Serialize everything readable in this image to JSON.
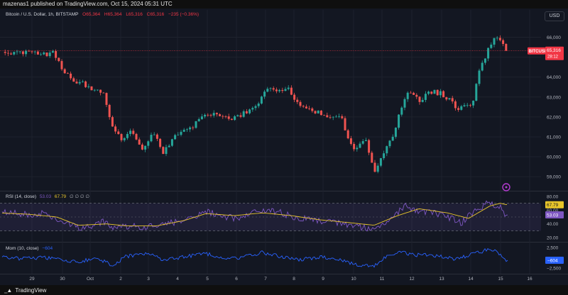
{
  "header": {
    "published_by": "mazenas1 published on TradingView.com, Oct 15, 2024 05:31 UTC"
  },
  "legend": {
    "symbol": "Bitcoin / U.S. Dollar, 1h, BITSTAMP",
    "open": "O65,364",
    "high": "H65,364",
    "low": "L65,316",
    "close": "C65,316",
    "change": "−235 (−0.36%)"
  },
  "currency": "USD",
  "price_tag": {
    "symbol": "BITCUSD",
    "price": "65,316",
    "countdown": "28:12"
  },
  "rsi": {
    "label": "RSI (14, close)",
    "value": "53.03",
    "ma": "67.79",
    "zeros": "∅ ∅ ∅ ∅",
    "tag_rsi": "53.03",
    "tag_ma": "67.79"
  },
  "mom": {
    "label": "Mom (10, close)",
    "value": "−604",
    "tag": "−604"
  },
  "footer": {
    "brand": "TradingView"
  },
  "colors": {
    "up": "#26a69a",
    "down": "#ef5350",
    "grid": "#1e222d",
    "rsi": "#7e57c2",
    "rsi_ma": "#e9c62a",
    "mom": "#2962ff",
    "price_line": "#f23645"
  },
  "chart_data": [
    {
      "type": "candlestick",
      "title": "Bitcoin / U.S. Dollar, 1h, BITSTAMP",
      "x_tick_labels": [
        "29",
        "30",
        "Oct",
        "2",
        "3",
        "4",
        "5",
        "6",
        "7",
        "8",
        "9",
        "10",
        "11",
        "12",
        "13",
        "14",
        "15",
        "16"
      ],
      "y_tick_labels": [
        "59,000",
        "60,000",
        "61,000",
        "62,000",
        "63,000",
        "64,000",
        "65,000",
        "66,000"
      ],
      "ylim": [
        58400,
        66800
      ],
      "grid": true,
      "last_price": 65316,
      "close_path_approx": [
        [
          0,
          65300
        ],
        [
          12,
          65150
        ],
        [
          40,
          65200
        ],
        [
          60,
          65100
        ],
        [
          75,
          65250
        ],
        [
          90,
          64300
        ],
        [
          100,
          63900
        ],
        [
          115,
          63700
        ],
        [
          130,
          63400
        ],
        [
          145,
          63300
        ],
        [
          160,
          61300
        ],
        [
          170,
          60900
        ],
        [
          185,
          61300
        ],
        [
          200,
          60300
        ],
        [
          215,
          61300
        ],
        [
          230,
          60200
        ],
        [
          250,
          61200
        ],
        [
          270,
          61500
        ],
        [
          290,
          62200
        ],
        [
          310,
          62000
        ],
        [
          325,
          61900
        ],
        [
          345,
          62200
        ],
        [
          360,
          62600
        ],
        [
          380,
          63500
        ],
        [
          395,
          63200
        ],
        [
          405,
          63400
        ],
        [
          420,
          62700
        ],
        [
          440,
          62300
        ],
        [
          460,
          62100
        ],
        [
          480,
          62000
        ],
        [
          490,
          61000
        ],
        [
          500,
          60400
        ],
        [
          515,
          60900
        ],
        [
          527,
          59300
        ],
        [
          540,
          60200
        ],
        [
          555,
          61200
        ],
        [
          565,
          62500
        ],
        [
          575,
          63200
        ],
        [
          590,
          62800
        ],
        [
          610,
          63300
        ],
        [
          625,
          63100
        ],
        [
          645,
          62400
        ],
        [
          665,
          62600
        ],
        [
          675,
          64300
        ],
        [
          685,
          65200
        ],
        [
          695,
          65900
        ],
        [
          705,
          65800
        ],
        [
          712,
          65316
        ]
      ]
    },
    {
      "type": "line",
      "title": "RSI (14, close)",
      "y_tick_labels": [
        "80.00",
        "60.00",
        "40.00",
        "20.00"
      ],
      "ylim": [
        15,
        85
      ],
      "bands": [
        30,
        70
      ],
      "series": [
        {
          "name": "RSI",
          "points": [
            [
              0,
              58
            ],
            [
              30,
              54
            ],
            [
              60,
              55
            ],
            [
              80,
              48
            ],
            [
              95,
              40
            ],
            [
              110,
              34
            ],
            [
              130,
              37
            ],
            [
              150,
              44
            ],
            [
              160,
              32
            ],
            [
              175,
              38
            ],
            [
              200,
              34
            ],
            [
              230,
              38
            ],
            [
              260,
              46
            ],
            [
              290,
              58
            ],
            [
              320,
              50
            ],
            [
              340,
              48
            ],
            [
              370,
              62
            ],
            [
              395,
              56
            ],
            [
              420,
              48
            ],
            [
              450,
              45
            ],
            [
              480,
              42
            ],
            [
              500,
              36
            ],
            [
              527,
              33
            ],
            [
              550,
              46
            ],
            [
              570,
              68
            ],
            [
              590,
              58
            ],
            [
              610,
              56
            ],
            [
              630,
              50
            ],
            [
              650,
              42
            ],
            [
              670,
              60
            ],
            [
              690,
              72
            ],
            [
              705,
              64
            ],
            [
              712,
              53
            ]
          ]
        },
        {
          "name": "RSI MA",
          "points": [
            [
              0,
              56
            ],
            [
              40,
              54
            ],
            [
              80,
              50
            ],
            [
              110,
              38
            ],
            [
              150,
              40
            ],
            [
              180,
              37
            ],
            [
              220,
              37
            ],
            [
              260,
              45
            ],
            [
              290,
              55
            ],
            [
              330,
              52
            ],
            [
              370,
              56
            ],
            [
              410,
              52
            ],
            [
              450,
              46
            ],
            [
              490,
              42
            ],
            [
              527,
              38
            ],
            [
              560,
              52
            ],
            [
              590,
              62
            ],
            [
              630,
              56
            ],
            [
              660,
              48
            ],
            [
              690,
              66
            ],
            [
              705,
              70
            ],
            [
              712,
              68
            ]
          ]
        }
      ]
    },
    {
      "type": "line",
      "title": "Mom (10, close)",
      "y_tick_labels": [
        "2,500",
        "−2,500"
      ],
      "ylim": [
        -3500,
        3500
      ],
      "series": [
        {
          "name": "Mom",
          "points": [
            [
              0,
              300
            ],
            [
              30,
              -200
            ],
            [
              60,
              100
            ],
            [
              90,
              -700
            ],
            [
              110,
              -1000
            ],
            [
              130,
              -200
            ],
            [
              150,
              -900
            ],
            [
              160,
              -2200
            ],
            [
              175,
              200
            ],
            [
              190,
              700
            ],
            [
              210,
              1200
            ],
            [
              230,
              -600
            ],
            [
              260,
              300
            ],
            [
              290,
              1000
            ],
            [
              320,
              -400
            ],
            [
              350,
              500
            ],
            [
              370,
              1300
            ],
            [
              395,
              300
            ],
            [
              420,
              -500
            ],
            [
              450,
              200
            ],
            [
              480,
              -600
            ],
            [
              500,
              -1700
            ],
            [
              527,
              -1900
            ],
            [
              545,
              300
            ],
            [
              565,
              1400
            ],
            [
              580,
              700
            ],
            [
              610,
              600
            ],
            [
              640,
              -300
            ],
            [
              670,
              1000
            ],
            [
              685,
              1900
            ],
            [
              700,
              1600
            ],
            [
              712,
              -604
            ]
          ]
        }
      ]
    }
  ]
}
